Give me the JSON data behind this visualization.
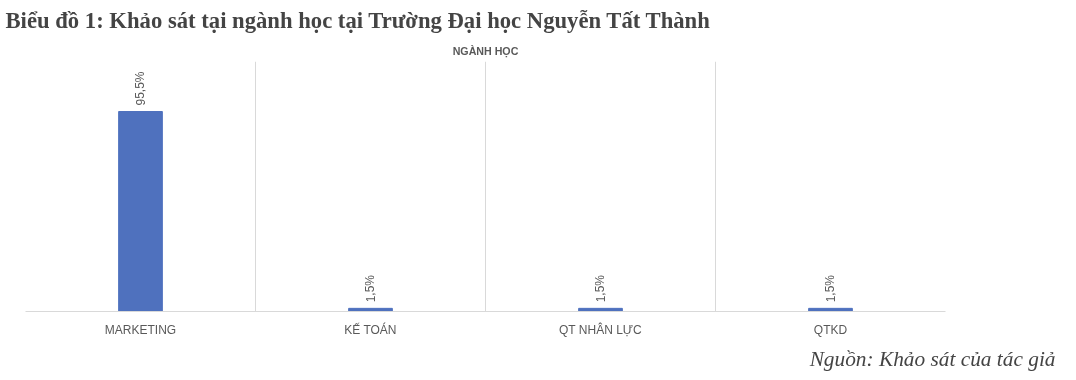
{
  "chart_data": {
    "type": "bar",
    "title": "Biểu đồ 1: Khảo sát tại ngành học tại Trường Đại học Nguyễn Tất Thành",
    "subtitle": "NGÀNH HỌC",
    "categories": [
      "MARKETING",
      "KẾ TOÁN",
      "QT NHÂN LỰC",
      "QTKD"
    ],
    "values": [
      95.5,
      1.5,
      1.5,
      1.5
    ],
    "color": "#4f71be",
    "value_labels": [
      "95,5%",
      "1,5%",
      "1,5%",
      "1,5%"
    ],
    "grid": "x",
    "tick_labels": "x",
    "annotations": [
      "Nguồn: Khảo sát của tác giả"
    ]
  }
}
